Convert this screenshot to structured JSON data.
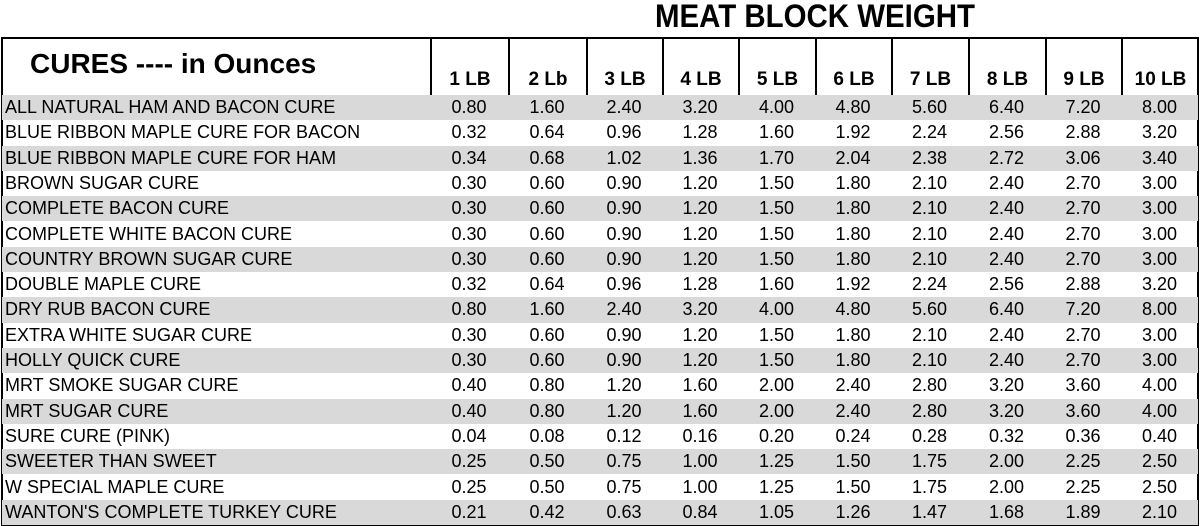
{
  "title": "MEAT BLOCK WEIGHT",
  "table": {
    "header": "CURES ---- in Ounces",
    "columns": [
      "1 LB",
      "2 Lb",
      "3 LB",
      "4 LB",
      "5 LB",
      "6 LB",
      "7 LB",
      "8 LB",
      "9 LB",
      "10 LB"
    ],
    "rows": [
      {
        "name": "ALL NATURAL HAM AND BACON CURE",
        "values": [
          "0.80",
          "1.60",
          "2.40",
          "3.20",
          "4.00",
          "4.80",
          "5.60",
          "6.40",
          "7.20",
          "8.00"
        ]
      },
      {
        "name": "BLUE RIBBON MAPLE CURE FOR BACON",
        "values": [
          "0.32",
          "0.64",
          "0.96",
          "1.28",
          "1.60",
          "1.92",
          "2.24",
          "2.56",
          "2.88",
          "3.20"
        ]
      },
      {
        "name": "BLUE RIBBON MAPLE CURE FOR HAM",
        "values": [
          "0.34",
          "0.68",
          "1.02",
          "1.36",
          "1.70",
          "2.04",
          "2.38",
          "2.72",
          "3.06",
          "3.40"
        ]
      },
      {
        "name": "BROWN SUGAR CURE",
        "values": [
          "0.30",
          "0.60",
          "0.90",
          "1.20",
          "1.50",
          "1.80",
          "2.10",
          "2.40",
          "2.70",
          "3.00"
        ]
      },
      {
        "name": "COMPLETE BACON CURE",
        "values": [
          "0.30",
          "0.60",
          "0.90",
          "1.20",
          "1.50",
          "1.80",
          "2.10",
          "2.40",
          "2.70",
          "3.00"
        ]
      },
      {
        "name": "COMPLETE WHITE BACON CURE",
        "values": [
          "0.30",
          "0.60",
          "0.90",
          "1.20",
          "1.50",
          "1.80",
          "2.10",
          "2.40",
          "2.70",
          "3.00"
        ]
      },
      {
        "name": "COUNTRY BROWN SUGAR CURE",
        "values": [
          "0.30",
          "0.60",
          "0.90",
          "1.20",
          "1.50",
          "1.80",
          "2.10",
          "2.40",
          "2.70",
          "3.00"
        ]
      },
      {
        "name": "DOUBLE MAPLE CURE",
        "values": [
          "0.32",
          "0.64",
          "0.96",
          "1.28",
          "1.60",
          "1.92",
          "2.24",
          "2.56",
          "2.88",
          "3.20"
        ]
      },
      {
        "name": "DRY RUB BACON CURE",
        "values": [
          "0.80",
          "1.60",
          "2.40",
          "3.20",
          "4.00",
          "4.80",
          "5.60",
          "6.40",
          "7.20",
          "8.00"
        ]
      },
      {
        "name": "EXTRA WHITE SUGAR CURE",
        "values": [
          "0.30",
          "0.60",
          "0.90",
          "1.20",
          "1.50",
          "1.80",
          "2.10",
          "2.40",
          "2.70",
          "3.00"
        ]
      },
      {
        "name": "HOLLY QUICK CURE",
        "values": [
          "0.30",
          "0.60",
          "0.90",
          "1.20",
          "1.50",
          "1.80",
          "2.10",
          "2.40",
          "2.70",
          "3.00"
        ]
      },
      {
        "name": "MRT SMOKE SUGAR CURE",
        "values": [
          "0.40",
          "0.80",
          "1.20",
          "1.60",
          "2.00",
          "2.40",
          "2.80",
          "3.20",
          "3.60",
          "4.00"
        ]
      },
      {
        "name": "MRT SUGAR CURE",
        "values": [
          "0.40",
          "0.80",
          "1.20",
          "1.60",
          "2.00",
          "2.40",
          "2.80",
          "3.20",
          "3.60",
          "4.00"
        ]
      },
      {
        "name": "SURE CURE (PINK)",
        "values": [
          "0.04",
          "0.08",
          "0.12",
          "0.16",
          "0.20",
          "0.24",
          "0.28",
          "0.32",
          "0.36",
          "0.40"
        ]
      },
      {
        "name": "SWEETER THAN SWEET",
        "values": [
          "0.25",
          "0.50",
          "0.75",
          "1.00",
          "1.25",
          "1.50",
          "1.75",
          "2.00",
          "2.25",
          "2.50"
        ]
      },
      {
        "name": "W SPECIAL MAPLE CURE",
        "values": [
          "0.25",
          "0.50",
          "0.75",
          "1.00",
          "1.25",
          "1.50",
          "1.75",
          "2.00",
          "2.25",
          "2.50"
        ]
      },
      {
        "name": "WANTON'S COMPLETE TURKEY CURE",
        "values": [
          "0.21",
          "0.42",
          "0.63",
          "0.84",
          "1.05",
          "1.26",
          "1.47",
          "1.68",
          "1.89",
          "2.10"
        ]
      }
    ]
  }
}
